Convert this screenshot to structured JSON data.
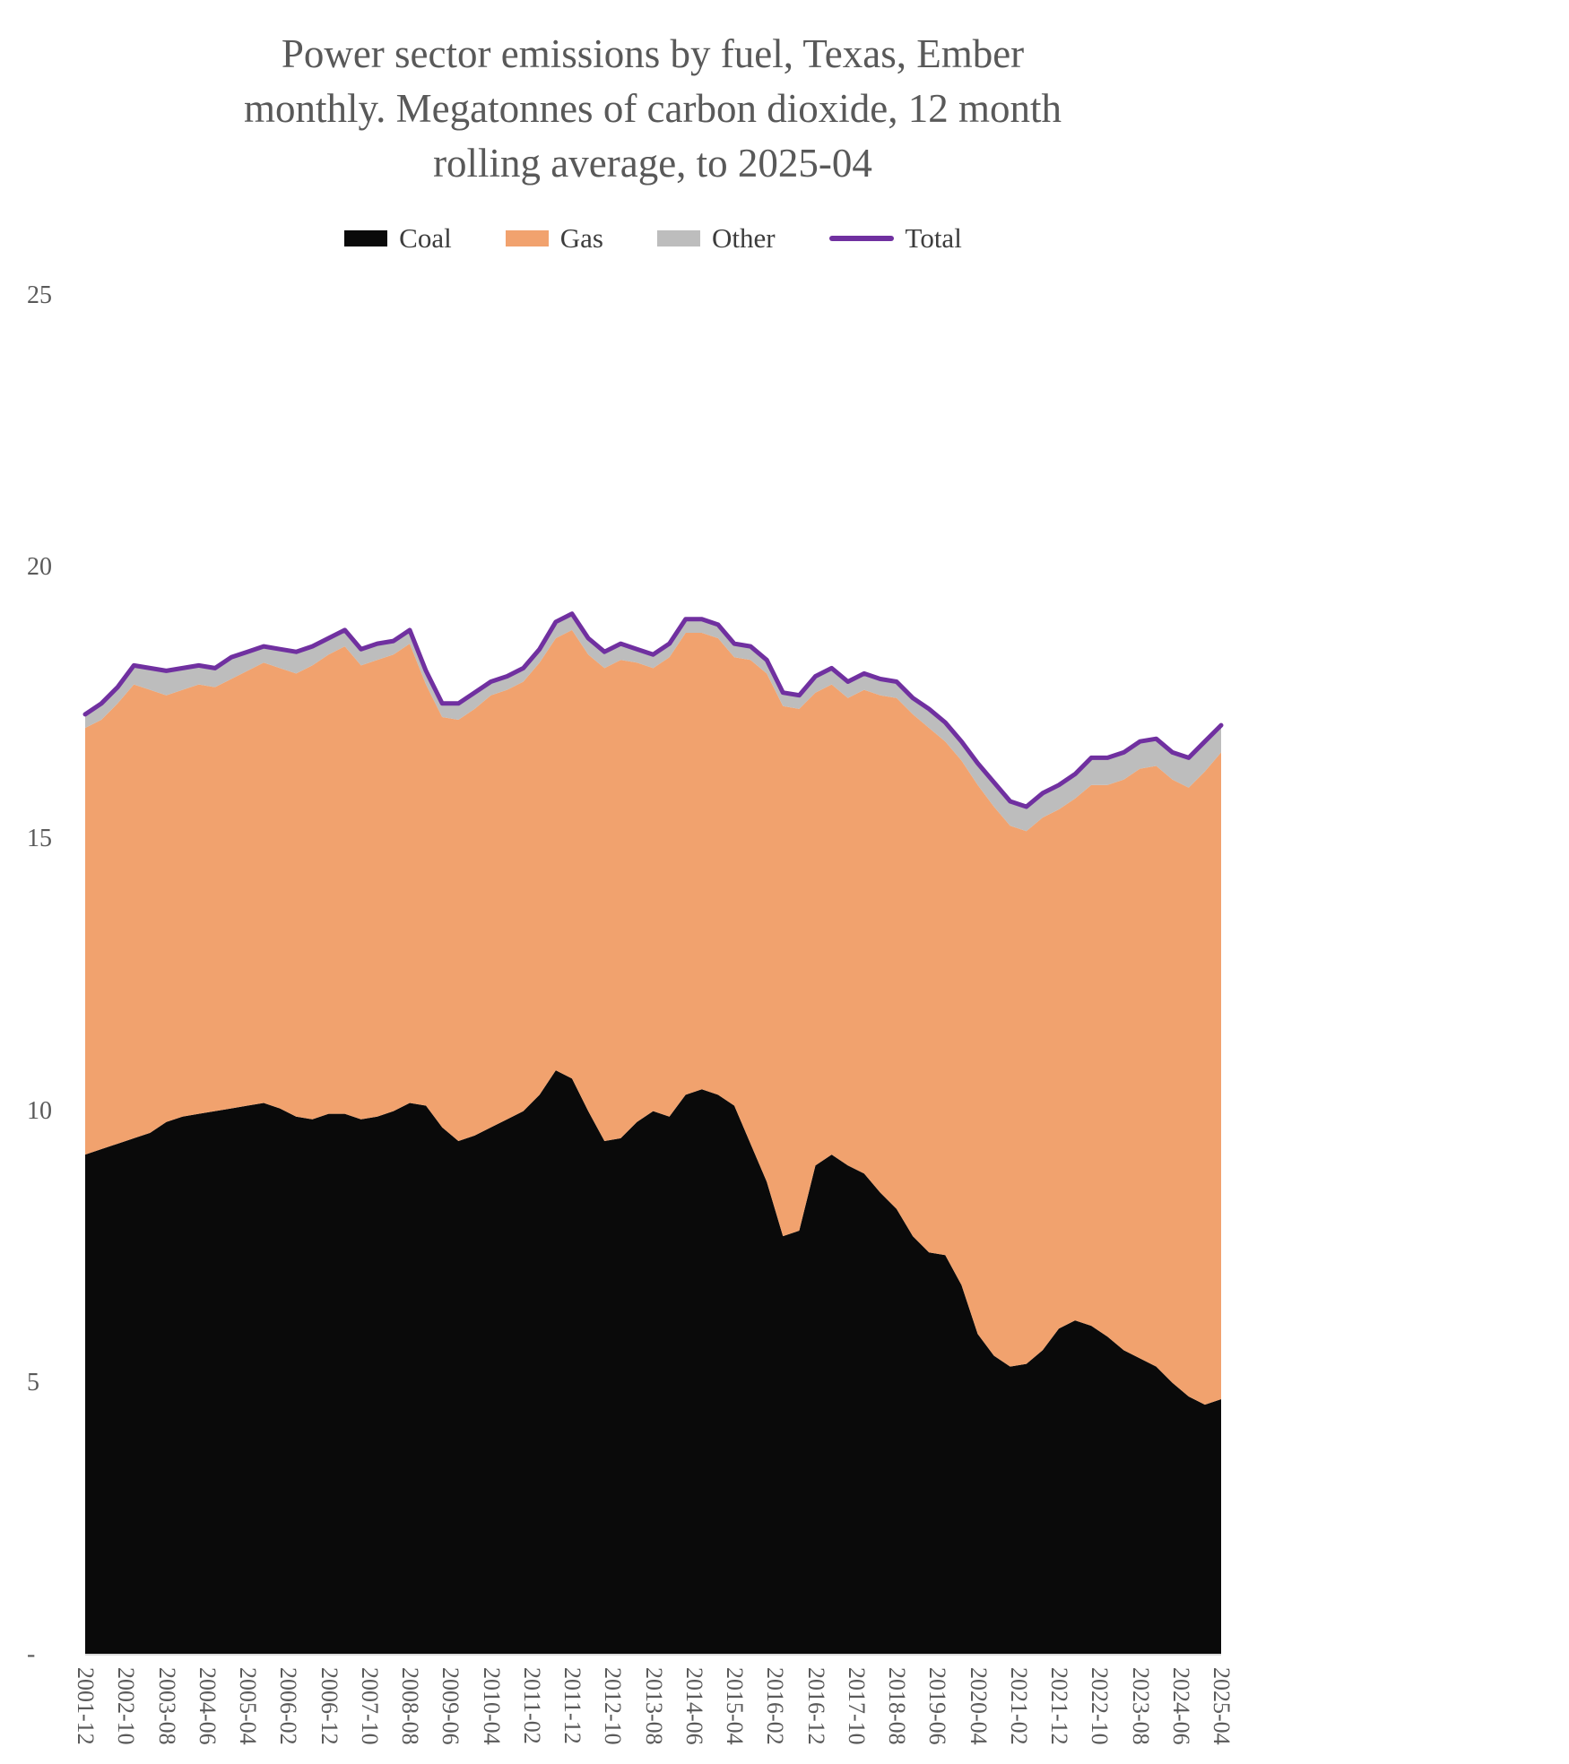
{
  "title": {
    "lines": [
      "Power sector emissions by fuel, Texas, Ember",
      "monthly. Megatonnes of carbon dioxide, 12 month",
      "rolling average, to 2025-04"
    ]
  },
  "legend": {
    "items": [
      {
        "label": "Coal",
        "color": "#0a0a0a",
        "shape": "box"
      },
      {
        "label": "Gas",
        "color": "#f1a26e",
        "shape": "box"
      },
      {
        "label": "Other",
        "color": "#bdbdbd",
        "shape": "box"
      },
      {
        "label": "Total",
        "color": "#7030a0",
        "shape": "line"
      }
    ]
  },
  "chart_data": {
    "type": "area",
    "stacked": true,
    "title": "Power sector emissions by fuel, Texas, Ember monthly. Megatonnes of carbon dioxide, 12 month rolling average, to 2025-04",
    "ylabel": "Megatonnes of carbon dioxide (12 month rolling average)",
    "xlabel": "",
    "ylim": [
      0,
      25
    ],
    "grid": false,
    "legend_position": "top",
    "axis_color": "#d9d9d9",
    "x": [
      "2001-12",
      "2002-04",
      "2002-08",
      "2002-12",
      "2003-04",
      "2003-08",
      "2003-12",
      "2004-04",
      "2004-08",
      "2004-12",
      "2005-04",
      "2005-08",
      "2005-12",
      "2006-04",
      "2006-08",
      "2006-12",
      "2007-04",
      "2007-08",
      "2007-12",
      "2008-04",
      "2008-08",
      "2008-12",
      "2009-04",
      "2009-08",
      "2009-12",
      "2010-04",
      "2010-08",
      "2010-12",
      "2011-04",
      "2011-08",
      "2011-12",
      "2012-04",
      "2012-08",
      "2012-12",
      "2013-04",
      "2013-08",
      "2013-12",
      "2014-04",
      "2014-08",
      "2014-12",
      "2015-04",
      "2015-08",
      "2015-12",
      "2016-04",
      "2016-08",
      "2016-12",
      "2017-04",
      "2017-08",
      "2017-12",
      "2018-04",
      "2018-08",
      "2018-12",
      "2019-04",
      "2019-08",
      "2019-12",
      "2020-04",
      "2020-08",
      "2020-12",
      "2021-04",
      "2021-08",
      "2021-12",
      "2022-04",
      "2022-08",
      "2022-12",
      "2023-04",
      "2023-08",
      "2023-12",
      "2024-04",
      "2024-08",
      "2024-12",
      "2025-04"
    ],
    "series": [
      {
        "name": "Coal",
        "color": "#0a0a0a",
        "values": [
          9.2,
          9.3,
          9.4,
          9.5,
          9.6,
          9.8,
          9.9,
          9.95,
          10.0,
          10.05,
          10.1,
          10.15,
          10.05,
          9.9,
          9.85,
          9.95,
          9.95,
          9.85,
          9.9,
          10.0,
          10.15,
          10.1,
          9.7,
          9.45,
          9.55,
          9.7,
          9.85,
          10.0,
          10.3,
          10.75,
          10.6,
          10.0,
          9.45,
          9.5,
          9.8,
          10.0,
          9.9,
          10.3,
          10.4,
          10.3,
          10.1,
          9.4,
          8.7,
          7.7,
          7.8,
          9.0,
          9.2,
          9.0,
          8.85,
          8.5,
          8.2,
          7.7,
          7.4,
          7.35,
          6.8,
          5.9,
          5.5,
          5.3,
          5.35,
          5.6,
          6.0,
          6.15,
          6.05,
          5.85,
          5.6,
          5.45,
          5.3,
          5.0,
          4.75,
          4.6,
          4.7
        ]
      },
      {
        "name": "Gas",
        "color": "#f1a26e",
        "values": [
          7.85,
          7.9,
          8.1,
          8.35,
          8.15,
          7.85,
          7.85,
          7.9,
          7.8,
          7.9,
          8.0,
          8.1,
          8.1,
          8.15,
          8.35,
          8.45,
          8.6,
          8.35,
          8.4,
          8.4,
          8.45,
          7.75,
          7.55,
          7.75,
          7.85,
          7.95,
          7.9,
          7.9,
          7.95,
          7.95,
          8.25,
          8.4,
          8.7,
          8.8,
          8.45,
          8.15,
          8.45,
          8.5,
          8.4,
          8.4,
          8.25,
          8.9,
          9.35,
          9.75,
          9.6,
          8.7,
          8.65,
          8.6,
          8.9,
          9.15,
          9.4,
          9.6,
          9.65,
          9.45,
          9.65,
          10.1,
          10.1,
          9.95,
          9.8,
          9.8,
          9.55,
          9.6,
          9.95,
          10.15,
          10.5,
          10.85,
          11.05,
          11.1,
          11.2,
          11.65,
          11.9
        ]
      },
      {
        "name": "Other",
        "color": "#bdbdbd",
        "values": [
          0.25,
          0.3,
          0.3,
          0.35,
          0.4,
          0.45,
          0.4,
          0.35,
          0.35,
          0.4,
          0.35,
          0.3,
          0.35,
          0.4,
          0.35,
          0.3,
          0.3,
          0.3,
          0.3,
          0.25,
          0.25,
          0.25,
          0.25,
          0.3,
          0.3,
          0.25,
          0.25,
          0.25,
          0.25,
          0.3,
          0.3,
          0.3,
          0.3,
          0.3,
          0.25,
          0.25,
          0.25,
          0.25,
          0.25,
          0.25,
          0.25,
          0.25,
          0.25,
          0.25,
          0.25,
          0.3,
          0.3,
          0.3,
          0.3,
          0.3,
          0.3,
          0.3,
          0.35,
          0.35,
          0.35,
          0.4,
          0.45,
          0.45,
          0.45,
          0.45,
          0.45,
          0.45,
          0.5,
          0.5,
          0.5,
          0.5,
          0.5,
          0.5,
          0.55,
          0.55,
          0.5
        ]
      }
    ],
    "total_line": {
      "name": "Total",
      "color": "#7030a0",
      "values": [
        17.3,
        17.5,
        17.8,
        18.2,
        18.15,
        18.1,
        18.15,
        18.2,
        18.15,
        18.35,
        18.45,
        18.55,
        18.5,
        18.45,
        18.55,
        18.7,
        18.85,
        18.5,
        18.6,
        18.65,
        18.85,
        18.1,
        17.5,
        17.5,
        17.7,
        17.9,
        18.0,
        18.15,
        18.5,
        19.0,
        19.15,
        18.7,
        18.45,
        18.6,
        18.5,
        18.4,
        18.6,
        19.05,
        19.05,
        18.95,
        18.6,
        18.55,
        18.3,
        17.7,
        17.65,
        18.0,
        18.15,
        17.9,
        18.05,
        17.95,
        17.9,
        17.6,
        17.4,
        17.15,
        16.8,
        16.4,
        16.05,
        15.7,
        15.6,
        15.85,
        16.0,
        16.2,
        16.5,
        16.5,
        16.6,
        16.8,
        16.85,
        16.6,
        16.5,
        16.8,
        17.1
      ]
    },
    "y_ticks": [
      {
        "value": 25,
        "label": "25"
      },
      {
        "value": 20,
        "label": "20"
      },
      {
        "value": 15,
        "label": "15"
      },
      {
        "value": 10,
        "label": "10"
      },
      {
        "value": 5,
        "label": "5"
      },
      {
        "value": 0,
        "label": "-"
      }
    ],
    "x_tick_labels": [
      "2001-12",
      "2002-10",
      "2003-08",
      "2004-06",
      "2005-04",
      "2006-02",
      "2006-12",
      "2007-10",
      "2008-08",
      "2009-06",
      "2010-04",
      "2011-02",
      "2011-12",
      "2012-10",
      "2013-08",
      "2014-06",
      "2015-04",
      "2016-02",
      "2016-12",
      "2017-10",
      "2018-08",
      "2019-06",
      "2020-04",
      "2021-02",
      "2021-12",
      "2022-10",
      "2023-08",
      "2024-06",
      "2025-04"
    ]
  }
}
